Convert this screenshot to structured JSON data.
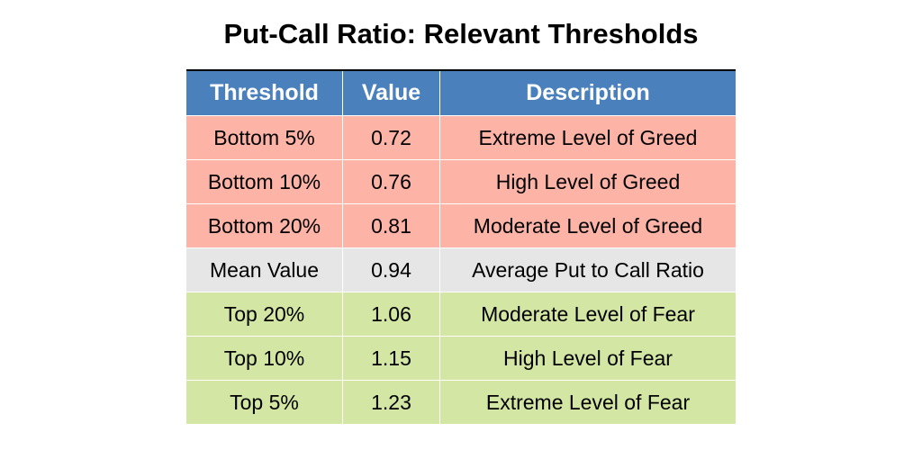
{
  "chart_data": {
    "type": "table",
    "title": "Put-Call Ratio: Relevant Thresholds",
    "columns": [
      "Threshold",
      "Value",
      "Description"
    ],
    "rows": [
      {
        "threshold": "Bottom 5%",
        "value": "0.72",
        "description": "Extreme Level of Greed",
        "group": "greed"
      },
      {
        "threshold": "Bottom 10%",
        "value": "0.76",
        "description": "High Level of Greed",
        "group": "greed"
      },
      {
        "threshold": "Bottom 20%",
        "value": "0.81",
        "description": "Moderate Level of Greed",
        "group": "greed"
      },
      {
        "threshold": "Mean Value",
        "value": "0.94",
        "description": "Average Put to Call Ratio",
        "group": "mean"
      },
      {
        "threshold": "Top 20%",
        "value": "1.06",
        "description": "Moderate Level of Fear",
        "group": "fear"
      },
      {
        "threshold": "Top 10%",
        "value": "1.15",
        "description": "High Level of Fear",
        "group": "fear"
      },
      {
        "threshold": "Top 5%",
        "value": "1.23",
        "description": "Extreme Level of Fear",
        "group": "fear"
      }
    ]
  },
  "colors": {
    "header": "#4a81bd",
    "header_text": "#ffffff",
    "greed": "#fdb3a6",
    "mean": "#e6e6e6",
    "fear": "#d3e6a3"
  }
}
